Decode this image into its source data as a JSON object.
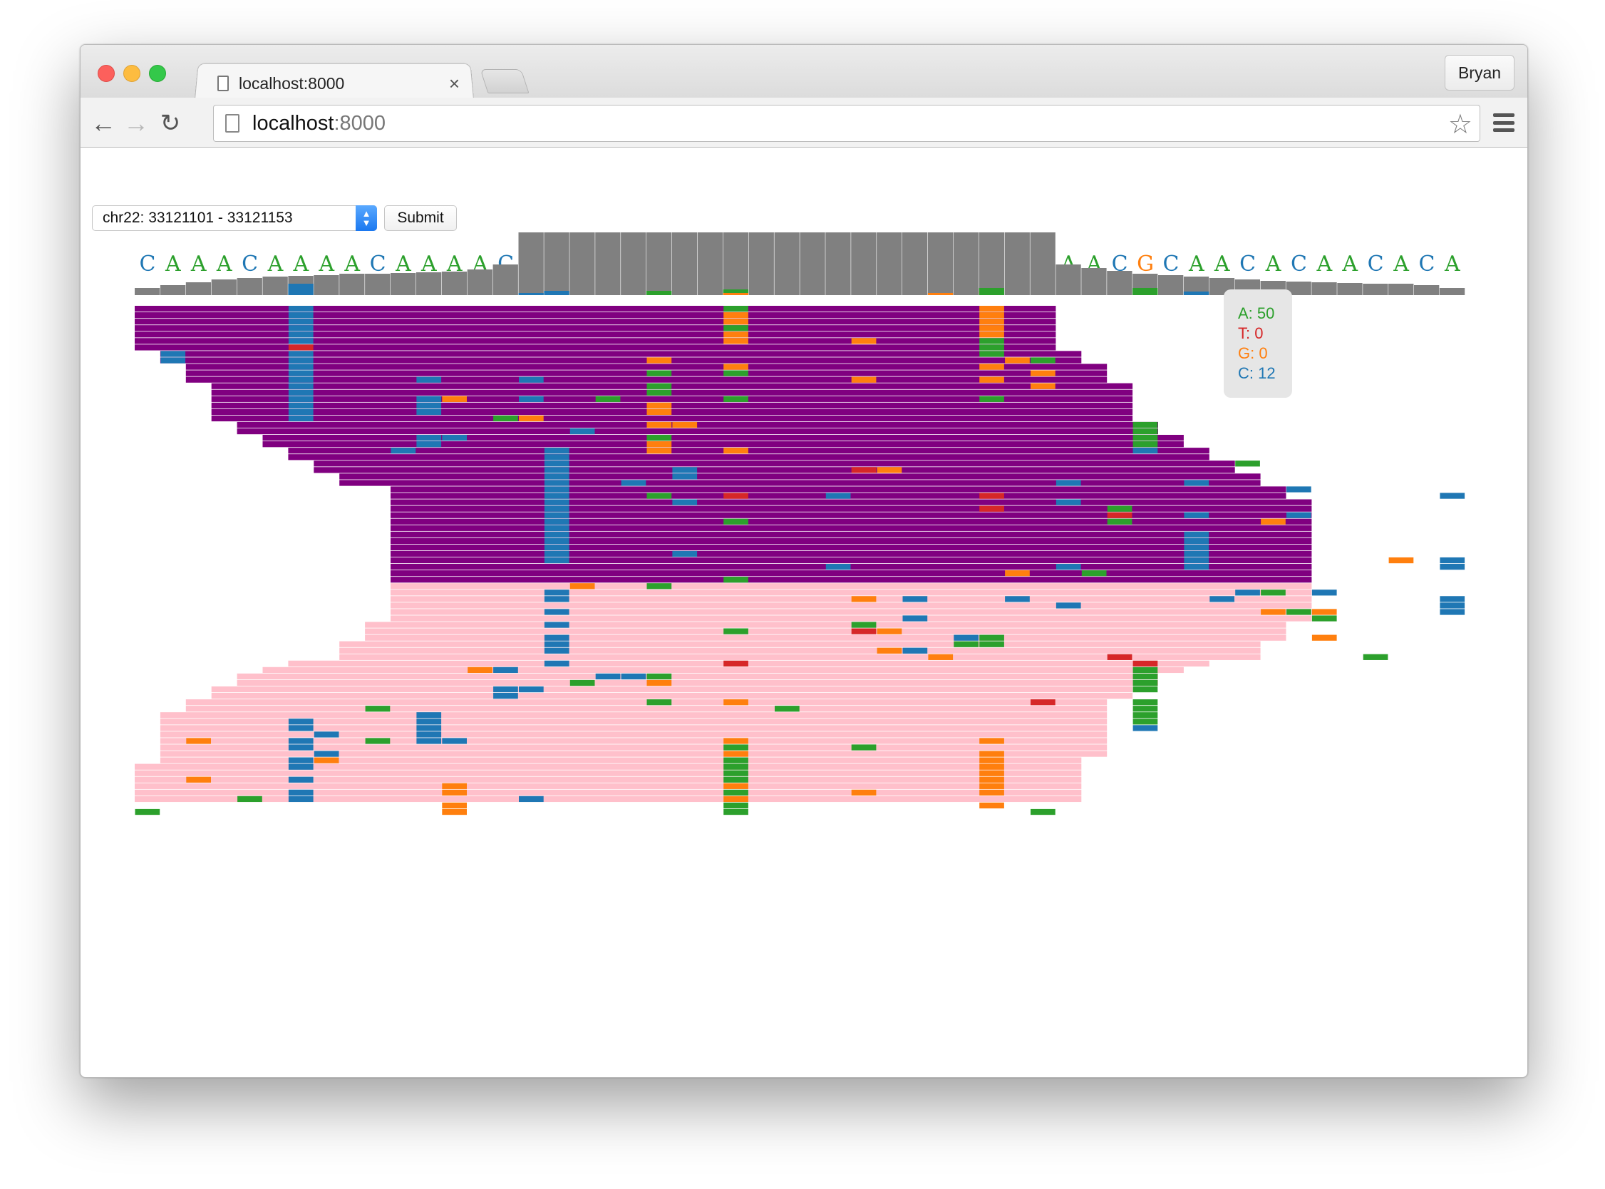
{
  "browser": {
    "tab_title": "localhost:8000",
    "tab_close": "×",
    "profile_name": "Bryan",
    "url_host": "localhost",
    "url_port": ":8000",
    "icons": [
      "back-arrow-icon",
      "forward-arrow-icon",
      "reload-icon",
      "page-icon",
      "star-icon",
      "menu-icon"
    ]
  },
  "controls": {
    "region_value": "chr22: 33121101 - 33121153",
    "submit_label": "Submit"
  },
  "colors": {
    "A": "#2ca02c",
    "T": "#d62728",
    "G": "#ff7f0e",
    "C": "#1f77b4",
    "forward_read": "#800080",
    "reverse_read": "#ffc0cb",
    "coverage": "#808080"
  },
  "chart_data": {
    "type": "heatmap",
    "reference_sequence": "CAAACAAAACAAAACAAACACAACACAACACAACACAACGCAACACAACACA",
    "tooltip": {
      "A_label": "A: 50",
      "T_label": "T: 0",
      "G_label": "G: 0",
      "C_label": "C: 12"
    }
  }
}
